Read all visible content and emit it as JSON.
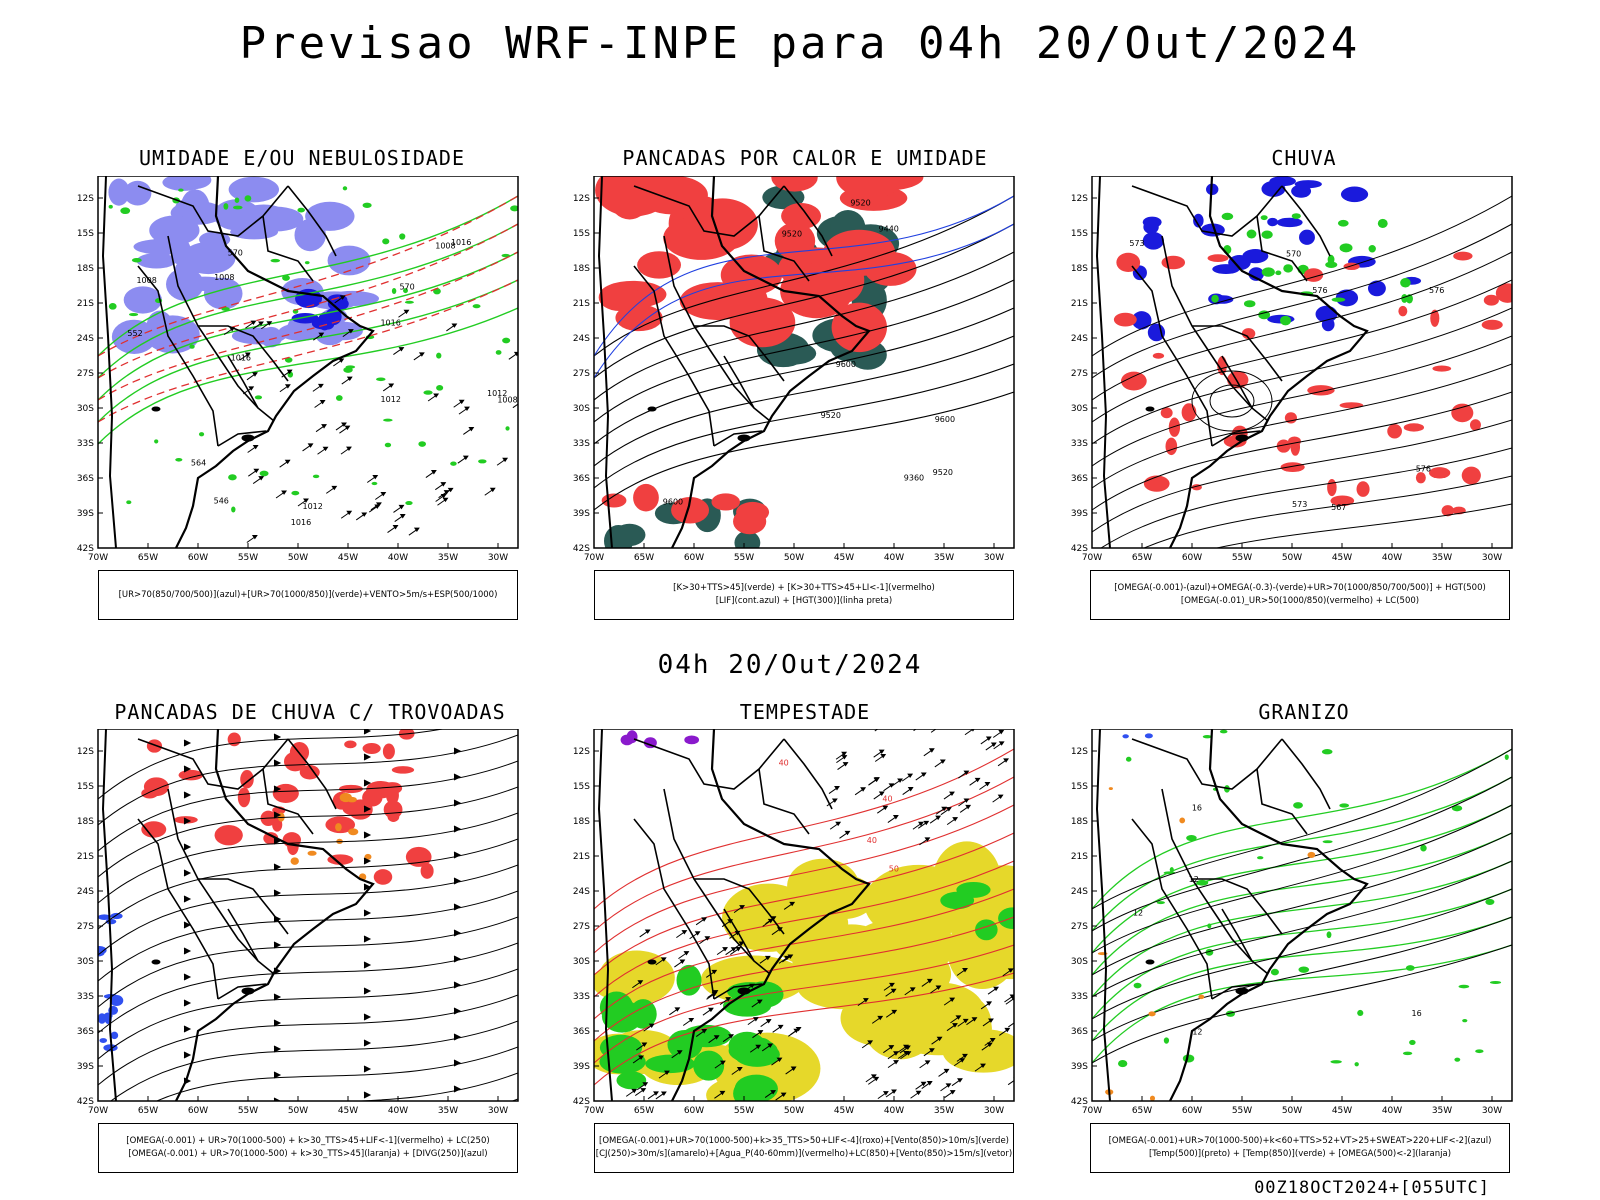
{
  "title": "Previsao WRF-INPE  para 04h 20/Out/2024",
  "mid_date": "04h 20/Out/2024",
  "footer": "00Z18OCT2024+[055UTC]",
  "axes": {
    "lat_labels": [
      "12S",
      "15S",
      "18S",
      "21S",
      "24S",
      "27S",
      "30S",
      "33S",
      "36S",
      "39S",
      "42S"
    ],
    "lon_labels": [
      "70W",
      "65W",
      "60W",
      "55W",
      "50W",
      "45W",
      "40W",
      "35W",
      "30W"
    ]
  },
  "panels": [
    {
      "title": "UMIDADE E/OU NEBULOSIDADE",
      "caption": [
        "[UR>70(850/700/500)](azul)+[UR>70(1000/850)](verde)+VENTO>5m/s+ESP(500/1000)"
      ],
      "contour_labels": [
        "1008",
        "1008",
        "1016",
        "1012",
        "1008",
        "1016",
        "1012",
        "1016",
        "1016",
        "1008",
        "1012",
        "570",
        "570",
        "564",
        "552",
        "546"
      ]
    },
    {
      "title": "PANCADAS POR CALOR E UMIDADE",
      "caption": [
        "[K>30+TTS>45](verde) + [K>30+TTS>45+LI<-1](vermelho)",
        "[LIF](cont.azul) + [HGT(300)](linha preta)"
      ],
      "contour_labels": [
        "9600",
        "9600",
        "9600",
        "9520",
        "9520",
        "9520",
        "9520",
        "9440",
        "9360"
      ]
    },
    {
      "title": "CHUVA",
      "caption": [
        "[OMEGA(-0.001)-(azul)+OMEGA(-0.3)-(verde)+UR>70(1000/850/700/500)] + HGT(500)",
        "[OMEGA(-0.01)_UR>50(1000/850)(vermelho) + LC(500)"
      ],
      "contour_labels": [
        "576",
        "576",
        "573",
        "576",
        "573",
        "570",
        "567"
      ]
    },
    {
      "title": "PANCADAS DE CHUVA C/ TROVOADAS",
      "caption": [
        "[OMEGA(-0.001) + UR>70(1000-500) + k>30_TTS>45+LIF<-1](vermelho) + LC(250)",
        "[OMEGA(-0.001) + UR>70(1000-500) + k>30_TTS>45](laranja) + [DIVG(250)](azul)"
      ],
      "contour_labels": []
    },
    {
      "title": "TEMPESTADE",
      "caption": [
        "[OMEGA(-0.001)+UR>70(1000-500)+k>35_TTS>50+LIF<-4](roxo)+[Vento(850)>10m/s](verde)",
        "[CJ(250)>30m/s](amarelo)+[Agua_P(40-60mm)](vermelho)+LC(850)+[Vento(850)>15m/s](vetor)"
      ],
      "contour_labels": [
        "50",
        "40",
        "40",
        "40"
      ]
    },
    {
      "title": "GRANIZO",
      "caption": [
        "[OMEGA(-0.001)+UR>70(1000-500)+k<60+TTS>52+VT>25+SWEAT>220+LIF<-2](azul)",
        "[Temp(500)](preto) + [Temp(850)](verde) + [OMEGA(500)<-2](laranja)"
      ],
      "contour_labels": [
        "12",
        "12",
        "16",
        "12",
        "16"
      ]
    }
  ],
  "colors": {
    "blue_fill": "#8c8cf0",
    "deep_blue": "#1a1adc",
    "green": "#22cc22",
    "red_fill": "#f04040",
    "dark_teal": "#2a5a55",
    "yellow": "#e6d82a",
    "orange": "#f08a20",
    "purple": "#8a1acc",
    "black": "#000000"
  }
}
